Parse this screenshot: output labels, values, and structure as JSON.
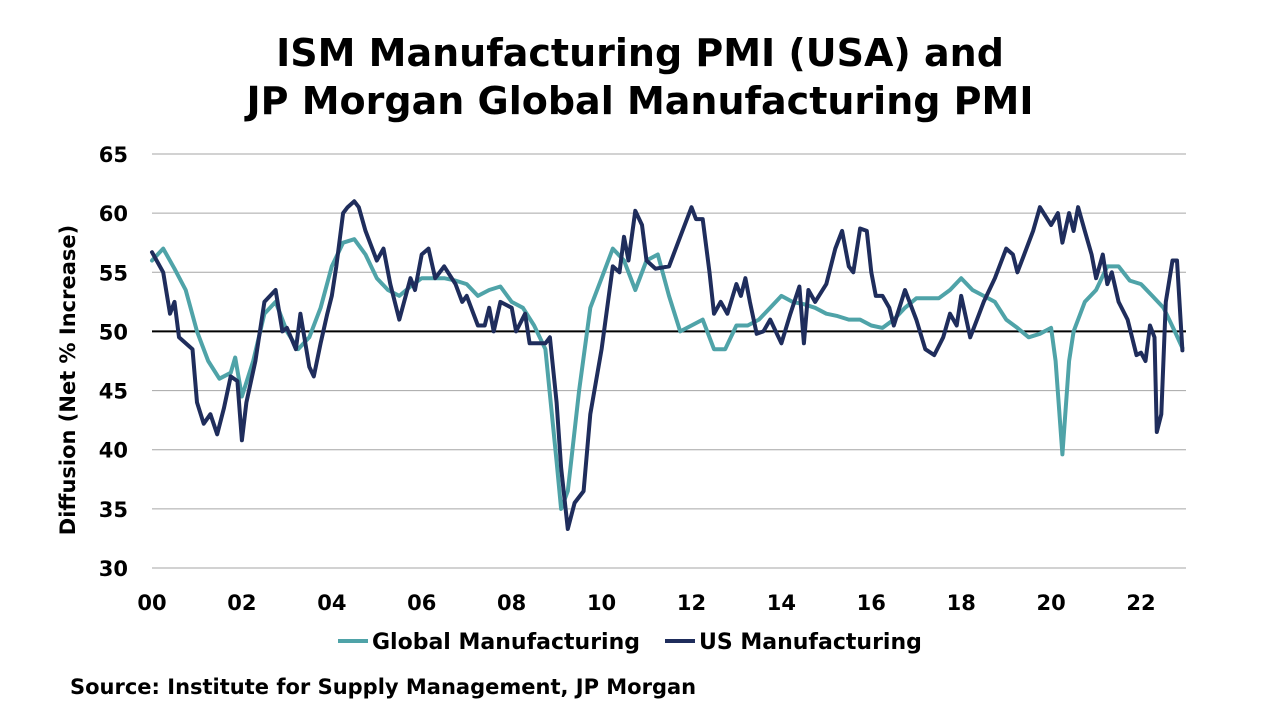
{
  "chart_data": {
    "type": "line",
    "title_line1": "ISM Manufacturing PMI (USA) and",
    "title_line2": "JP Morgan Global Manufacturing PMI",
    "ylabel": "Diffusion (Net % Increase)",
    "xlabel": "",
    "ylim": [
      30,
      65
    ],
    "yticks": [
      30,
      35,
      40,
      45,
      50,
      55,
      60,
      65
    ],
    "xlim": [
      2000,
      2023
    ],
    "xticks": [
      2000,
      2002,
      2004,
      2006,
      2008,
      2010,
      2012,
      2014,
      2016,
      2018,
      2020,
      2022
    ],
    "xtick_labels": [
      "00",
      "02",
      "04",
      "06",
      "08",
      "10",
      "12",
      "14",
      "16",
      "18",
      "20",
      "22"
    ],
    "reference_line": 50,
    "grid": "horizontal",
    "legend_position": "bottom",
    "source": "Source: Institute for Supply Management, JP Morgan",
    "series": [
      {
        "name": "Global Manufacturing",
        "color": "#4fa3a8",
        "points": [
          [
            2000.0,
            56.0
          ],
          [
            2000.25,
            57.0
          ],
          [
            2000.5,
            55.3
          ],
          [
            2000.75,
            53.5
          ],
          [
            2001.0,
            50.0
          ],
          [
            2001.25,
            47.5
          ],
          [
            2001.5,
            46.0
          ],
          [
            2001.75,
            46.5
          ],
          [
            2001.85,
            47.8
          ],
          [
            2002.0,
            44.5
          ],
          [
            2002.25,
            47.5
          ],
          [
            2002.5,
            51.5
          ],
          [
            2002.75,
            52.5
          ],
          [
            2003.0,
            50.0
          ],
          [
            2003.25,
            48.5
          ],
          [
            2003.5,
            49.5
          ],
          [
            2003.75,
            52.0
          ],
          [
            2004.0,
            55.5
          ],
          [
            2004.25,
            57.5
          ],
          [
            2004.5,
            57.8
          ],
          [
            2004.75,
            56.5
          ],
          [
            2005.0,
            54.5
          ],
          [
            2005.25,
            53.5
          ],
          [
            2005.5,
            53.0
          ],
          [
            2005.75,
            53.8
          ],
          [
            2006.0,
            54.5
          ],
          [
            2006.25,
            54.5
          ],
          [
            2006.5,
            54.5
          ],
          [
            2006.75,
            54.3
          ],
          [
            2007.0,
            54.0
          ],
          [
            2007.25,
            53.0
          ],
          [
            2007.5,
            53.5
          ],
          [
            2007.75,
            53.8
          ],
          [
            2008.0,
            52.5
          ],
          [
            2008.25,
            52.0
          ],
          [
            2008.5,
            50.5
          ],
          [
            2008.75,
            48.5
          ],
          [
            2009.0,
            39.0
          ],
          [
            2009.1,
            35.0
          ],
          [
            2009.25,
            36.5
          ],
          [
            2009.5,
            45.0
          ],
          [
            2009.75,
            52.0
          ],
          [
            2010.0,
            54.5
          ],
          [
            2010.25,
            57.0
          ],
          [
            2010.5,
            56.0
          ],
          [
            2010.75,
            53.5
          ],
          [
            2011.0,
            56.0
          ],
          [
            2011.25,
            56.5
          ],
          [
            2011.5,
            53.0
          ],
          [
            2011.75,
            50.0
          ],
          [
            2012.0,
            50.5
          ],
          [
            2012.25,
            51.0
          ],
          [
            2012.5,
            48.5
          ],
          [
            2012.75,
            48.5
          ],
          [
            2013.0,
            50.5
          ],
          [
            2013.25,
            50.5
          ],
          [
            2013.5,
            51.0
          ],
          [
            2013.75,
            52.0
          ],
          [
            2014.0,
            53.0
          ],
          [
            2014.25,
            52.5
          ],
          [
            2014.5,
            52.3
          ],
          [
            2014.75,
            52.0
          ],
          [
            2015.0,
            51.5
          ],
          [
            2015.25,
            51.3
          ],
          [
            2015.5,
            51.0
          ],
          [
            2015.75,
            51.0
          ],
          [
            2016.0,
            50.5
          ],
          [
            2016.25,
            50.3
          ],
          [
            2016.5,
            51.0
          ],
          [
            2016.75,
            52.0
          ],
          [
            2017.0,
            52.8
          ],
          [
            2017.25,
            52.8
          ],
          [
            2017.5,
            52.8
          ],
          [
            2017.75,
            53.5
          ],
          [
            2018.0,
            54.5
          ],
          [
            2018.25,
            53.5
          ],
          [
            2018.5,
            53.0
          ],
          [
            2018.75,
            52.5
          ],
          [
            2019.0,
            51.0
          ],
          [
            2019.25,
            50.3
          ],
          [
            2019.5,
            49.5
          ],
          [
            2019.75,
            49.8
          ],
          [
            2020.0,
            50.3
          ],
          [
            2020.1,
            47.5
          ],
          [
            2020.25,
            39.6
          ],
          [
            2020.4,
            47.5
          ],
          [
            2020.5,
            50.0
          ],
          [
            2020.75,
            52.5
          ],
          [
            2021.0,
            53.5
          ],
          [
            2021.25,
            55.5
          ],
          [
            2021.5,
            55.5
          ],
          [
            2021.75,
            54.3
          ],
          [
            2022.0,
            54.0
          ],
          [
            2022.25,
            53.0
          ],
          [
            2022.5,
            52.0
          ],
          [
            2022.75,
            50.0
          ],
          [
            2022.92,
            48.6
          ]
        ]
      },
      {
        "name": "US Manufacturing",
        "color": "#1f2d5c",
        "points": [
          [
            2000.0,
            56.7
          ],
          [
            2000.25,
            55.0
          ],
          [
            2000.4,
            51.5
          ],
          [
            2000.5,
            52.5
          ],
          [
            2000.6,
            49.5
          ],
          [
            2000.9,
            48.5
          ],
          [
            2001.0,
            44.0
          ],
          [
            2001.15,
            42.2
          ],
          [
            2001.3,
            43.0
          ],
          [
            2001.45,
            41.3
          ],
          [
            2001.6,
            43.5
          ],
          [
            2001.75,
            46.2
          ],
          [
            2001.9,
            45.8
          ],
          [
            2002.0,
            40.8
          ],
          [
            2002.1,
            44.0
          ],
          [
            2002.3,
            47.5
          ],
          [
            2002.5,
            52.5
          ],
          [
            2002.75,
            53.5
          ],
          [
            2002.9,
            50.0
          ],
          [
            2003.0,
            50.3
          ],
          [
            2003.2,
            48.5
          ],
          [
            2003.3,
            51.5
          ],
          [
            2003.5,
            47.0
          ],
          [
            2003.6,
            46.2
          ],
          [
            2003.75,
            49.0
          ],
          [
            2003.9,
            51.5
          ],
          [
            2004.0,
            53.0
          ],
          [
            2004.1,
            55.5
          ],
          [
            2004.25,
            60.0
          ],
          [
            2004.35,
            60.5
          ],
          [
            2004.5,
            61.0
          ],
          [
            2004.6,
            60.5
          ],
          [
            2004.75,
            58.5
          ],
          [
            2005.0,
            56.0
          ],
          [
            2005.15,
            57.0
          ],
          [
            2005.3,
            54.0
          ],
          [
            2005.5,
            51.0
          ],
          [
            2005.75,
            54.5
          ],
          [
            2005.85,
            53.5
          ],
          [
            2006.0,
            56.5
          ],
          [
            2006.15,
            57.0
          ],
          [
            2006.3,
            54.5
          ],
          [
            2006.5,
            55.5
          ],
          [
            2006.75,
            54.0
          ],
          [
            2006.9,
            52.5
          ],
          [
            2007.0,
            53.0
          ],
          [
            2007.25,
            50.5
          ],
          [
            2007.4,
            50.5
          ],
          [
            2007.5,
            52.0
          ],
          [
            2007.6,
            50.0
          ],
          [
            2007.75,
            52.5
          ],
          [
            2008.0,
            52.0
          ],
          [
            2008.1,
            50.0
          ],
          [
            2008.3,
            51.5
          ],
          [
            2008.4,
            49.0
          ],
          [
            2008.6,
            49.0
          ],
          [
            2008.75,
            49.0
          ],
          [
            2008.85,
            49.5
          ],
          [
            2009.0,
            44.0
          ],
          [
            2009.1,
            38.5
          ],
          [
            2009.25,
            33.3
          ],
          [
            2009.4,
            35.5
          ],
          [
            2009.6,
            36.5
          ],
          [
            2009.75,
            43.0
          ],
          [
            2010.0,
            48.5
          ],
          [
            2010.25,
            55.5
          ],
          [
            2010.4,
            55.0
          ],
          [
            2010.5,
            58.0
          ],
          [
            2010.6,
            56.0
          ],
          [
            2010.75,
            60.2
          ],
          [
            2010.9,
            59.0
          ],
          [
            2011.0,
            56.0
          ],
          [
            2011.2,
            55.3
          ],
          [
            2011.5,
            55.5
          ],
          [
            2011.75,
            58.0
          ],
          [
            2012.0,
            60.5
          ],
          [
            2012.1,
            59.5
          ],
          [
            2012.25,
            59.5
          ],
          [
            2012.4,
            55.0
          ],
          [
            2012.5,
            51.5
          ],
          [
            2012.65,
            52.5
          ],
          [
            2012.8,
            51.5
          ],
          [
            2013.0,
            54.0
          ],
          [
            2013.1,
            53.0
          ],
          [
            2013.2,
            54.5
          ],
          [
            2013.3,
            52.5
          ],
          [
            2013.45,
            49.8
          ],
          [
            2013.6,
            50.0
          ],
          [
            2013.75,
            51.0
          ],
          [
            2014.0,
            49.0
          ],
          [
            2014.2,
            51.5
          ],
          [
            2014.4,
            53.8
          ],
          [
            2014.5,
            49.0
          ],
          [
            2014.6,
            53.5
          ],
          [
            2014.75,
            52.5
          ],
          [
            2015.0,
            54.0
          ],
          [
            2015.2,
            57.0
          ],
          [
            2015.35,
            58.5
          ],
          [
            2015.5,
            55.5
          ],
          [
            2015.6,
            55.0
          ],
          [
            2015.75,
            58.7
          ],
          [
            2015.9,
            58.5
          ],
          [
            2016.0,
            55.0
          ],
          [
            2016.1,
            53.0
          ],
          [
            2016.25,
            53.0
          ],
          [
            2016.4,
            52.0
          ],
          [
            2016.5,
            50.5
          ],
          [
            2016.75,
            53.5
          ],
          [
            2017.0,
            51.0
          ],
          [
            2017.2,
            48.5
          ],
          [
            2017.4,
            48.0
          ],
          [
            2017.6,
            49.5
          ],
          [
            2017.75,
            51.5
          ],
          [
            2017.9,
            50.5
          ],
          [
            2018.0,
            53.0
          ],
          [
            2018.2,
            49.5
          ],
          [
            2018.35,
            51.0
          ],
          [
            2018.5,
            52.5
          ],
          [
            2018.75,
            54.5
          ],
          [
            2019.0,
            57.0
          ],
          [
            2019.15,
            56.5
          ],
          [
            2019.25,
            55.0
          ],
          [
            2019.4,
            56.5
          ],
          [
            2019.6,
            58.5
          ],
          [
            2019.75,
            60.5
          ],
          [
            2020.0,
            59.0
          ],
          [
            2020.15,
            60.0
          ],
          [
            2020.25,
            57.5
          ],
          [
            2020.4,
            60.0
          ],
          [
            2020.5,
            58.5
          ],
          [
            2020.6,
            60.5
          ],
          [
            2020.75,
            58.5
          ],
          [
            2020.9,
            56.5
          ],
          [
            2021.0,
            54.5
          ],
          [
            2021.15,
            56.5
          ],
          [
            2021.25,
            54.0
          ],
          [
            2021.35,
            55.0
          ],
          [
            2021.5,
            52.5
          ],
          [
            2021.7,
            51.0
          ],
          [
            2021.9,
            48.0
          ],
          [
            2022.0,
            48.2
          ],
          [
            2022.1,
            47.5
          ],
          [
            2022.2,
            50.5
          ],
          [
            2022.3,
            49.5
          ],
          [
            2022.35,
            41.5
          ],
          [
            2022.45,
            43.0
          ],
          [
            2022.55,
            52.5
          ],
          [
            2022.7,
            56.0
          ],
          [
            2022.8,
            56.0
          ],
          [
            2022.92,
            48.4
          ]
        ]
      }
    ]
  }
}
